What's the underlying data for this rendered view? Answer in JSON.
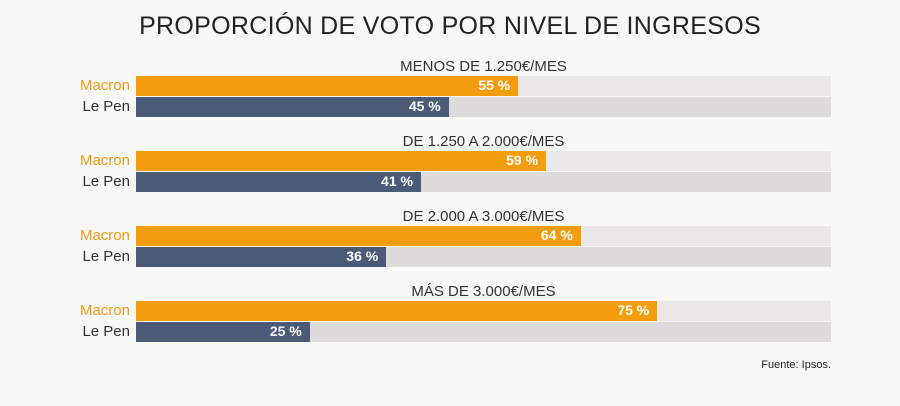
{
  "title": "PROPORCIÓN DE VOTO POR NIVEL DE INGRESOS",
  "source": "Fuente: Ipsos.",
  "colors": {
    "Macron": "#f39c0d",
    "Le Pen": "#4b5a77",
    "track_macron": "#e9e7e7",
    "track_lepen": "#dddbdb"
  },
  "chart_data": {
    "type": "bar",
    "orientation": "horizontal",
    "title": "PROPORCIÓN DE VOTO POR NIVEL DE INGRESOS",
    "xlim": [
      0,
      100
    ],
    "categories": [
      "MENOS DE 1.250€/MES",
      "DE 1.250 A 2.000€/MES",
      "DE 2.000 A 3.000€/MES",
      "MÁS DE 3.000€/MES"
    ],
    "series": [
      {
        "name": "Macron",
        "values": [
          55,
          59,
          64,
          75
        ],
        "labels": [
          "55 %",
          "59 %",
          "64 %",
          "75 %"
        ]
      },
      {
        "name": "Le Pen",
        "values": [
          45,
          41,
          36,
          25
        ],
        "labels": [
          "45 %",
          "41 %",
          "36 %",
          "25 %"
        ]
      }
    ]
  }
}
